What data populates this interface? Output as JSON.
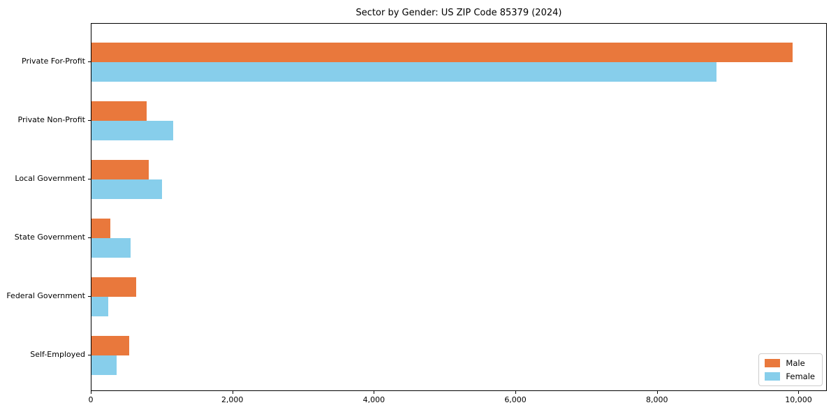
{
  "chart_data": {
    "type": "bar",
    "orientation": "horizontal",
    "title": "Sector by Gender: US ZIP Code 85379 (2024)",
    "categories": [
      "Private For-Profit",
      "Private Non-Profit",
      "Local Government",
      "State Government",
      "Federal Government",
      "Self-Employed"
    ],
    "series": [
      {
        "name": "Male",
        "color": "#e9783c",
        "values": [
          9910,
          775,
          810,
          270,
          635,
          530
        ]
      },
      {
        "name": "Female",
        "color": "#87ceeb",
        "values": [
          8830,
          1150,
          1000,
          550,
          240,
          360
        ]
      }
    ],
    "xlabel": "",
    "ylabel": "",
    "xlim": [
      0,
      10400
    ],
    "xticks": [
      0,
      2000,
      4000,
      6000,
      8000,
      10000
    ],
    "xtick_labels": [
      "0",
      "2,000",
      "4,000",
      "6,000",
      "8,000",
      "10,000"
    ],
    "grid": false,
    "legend": {
      "position": "lower right"
    }
  }
}
